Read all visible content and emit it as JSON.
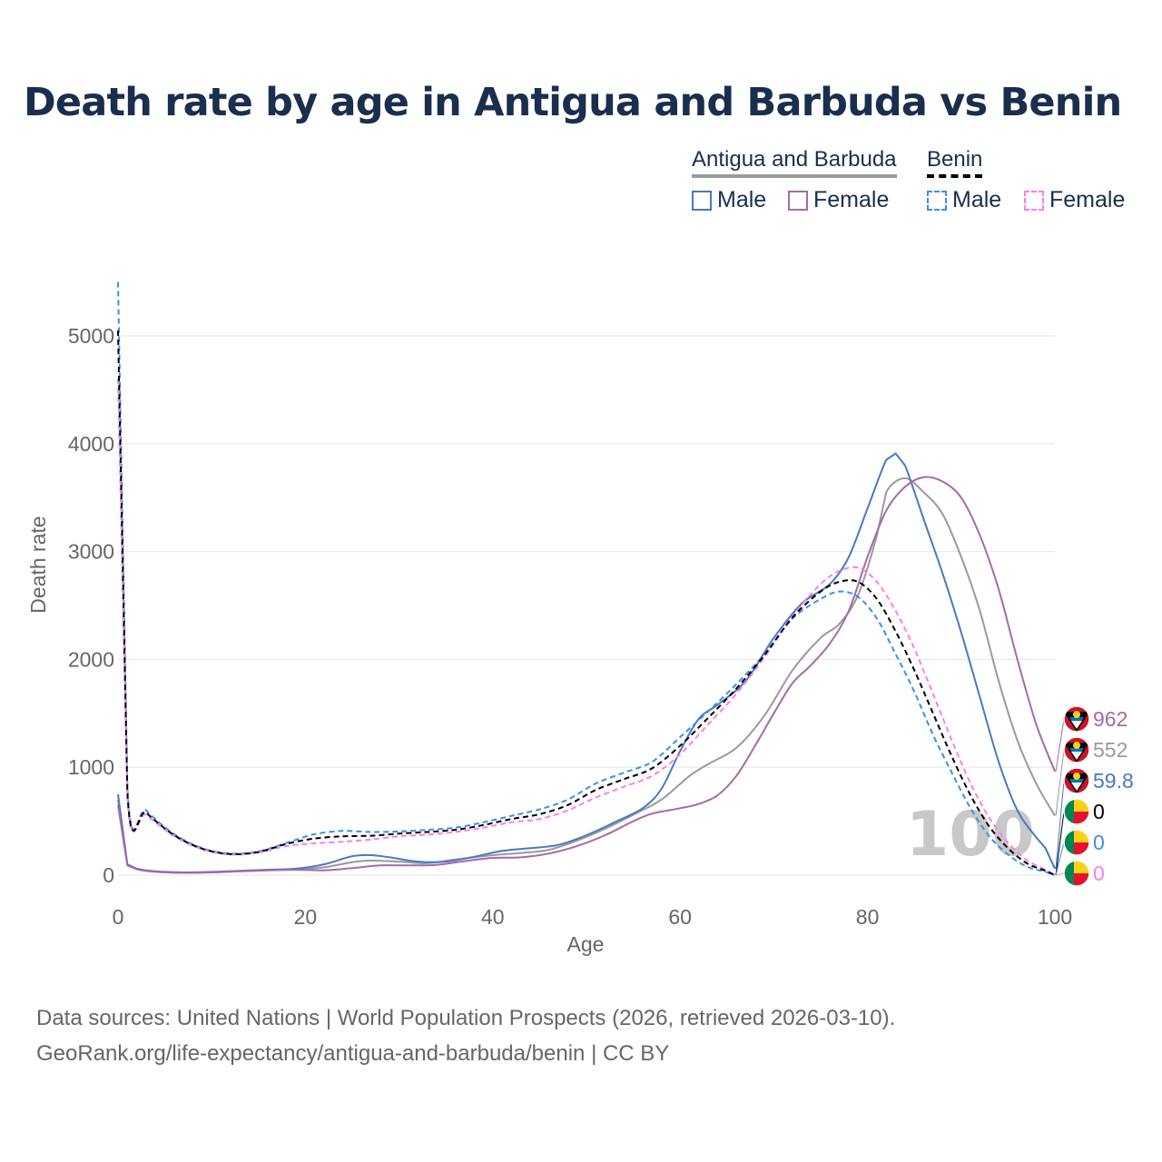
{
  "title": "Death rate by age in Antigua and Barbuda vs Benin",
  "legend": {
    "country_a": "Antigua and Barbuda",
    "country_b": "Benin",
    "male": "Male",
    "female": "Female"
  },
  "footer": {
    "line1": "Data sources: United Nations | World Population Prospects (2026, retrieved 2026-03-10).",
    "line2": "GeoRank.org/life-expectancy/antigua-and-barbuda/benin | CC BY"
  },
  "colors": {
    "male": "#4a78c2",
    "female": "#a56aaa",
    "total": "#9a9a9a",
    "benin_male": "#3d8ee8",
    "benin_female": "#ff7ce8",
    "benin_total": "#000000"
  },
  "chart_data": {
    "type": "line",
    "title": "Death rate by age in Antigua and Barbuda vs Benin",
    "xlabel": "Age",
    "ylabel": "Death rate",
    "xlim": [
      0,
      100
    ],
    "ylim": [
      0,
      5000
    ],
    "xticks": [
      0,
      20,
      40,
      60,
      80,
      100
    ],
    "yticks": [
      0,
      1000,
      2000,
      3000,
      4000,
      5000
    ],
    "year_watermark": "100",
    "series": [
      {
        "name": "Antigua and Barbuda Male",
        "country": "Antigua and Barbuda",
        "sex": "Male",
        "style": "solid",
        "color": "#4a78c2",
        "points": [
          [
            0,
            750
          ],
          [
            1,
            100
          ],
          [
            2,
            60
          ],
          [
            4,
            35
          ],
          [
            7,
            25
          ],
          [
            10,
            30
          ],
          [
            13,
            40
          ],
          [
            16,
            50
          ],
          [
            19,
            60
          ],
          [
            22,
            100
          ],
          [
            25,
            175
          ],
          [
            27,
            185
          ],
          [
            29,
            165
          ],
          [
            32,
            125
          ],
          [
            35,
            125
          ],
          [
            38,
            170
          ],
          [
            41,
            225
          ],
          [
            44,
            250
          ],
          [
            47,
            280
          ],
          [
            50,
            370
          ],
          [
            53,
            490
          ],
          [
            56,
            620
          ],
          [
            58,
            800
          ],
          [
            60,
            1150
          ],
          [
            62,
            1450
          ],
          [
            64,
            1580
          ],
          [
            67,
            1800
          ],
          [
            70,
            2200
          ],
          [
            73,
            2520
          ],
          [
            76,
            2700
          ],
          [
            78,
            2950
          ],
          [
            80,
            3400
          ],
          [
            82,
            3850
          ],
          [
            83,
            3910
          ],
          [
            84,
            3800
          ],
          [
            86,
            3300
          ],
          [
            88,
            2800
          ],
          [
            90,
            2250
          ],
          [
            92,
            1650
          ],
          [
            94,
            1050
          ],
          [
            96,
            600
          ],
          [
            98,
            350
          ],
          [
            99,
            250
          ],
          [
            100,
            60
          ]
        ],
        "end_label": "59.8"
      },
      {
        "name": "Antigua and Barbuda Female",
        "country": "Antigua and Barbuda",
        "sex": "Female",
        "style": "solid",
        "color": "#a56aaa",
        "points": [
          [
            0,
            650
          ],
          [
            1,
            90
          ],
          [
            2,
            55
          ],
          [
            4,
            30
          ],
          [
            7,
            22
          ],
          [
            10,
            25
          ],
          [
            13,
            35
          ],
          [
            16,
            45
          ],
          [
            19,
            50
          ],
          [
            22,
            45
          ],
          [
            25,
            65
          ],
          [
            28,
            90
          ],
          [
            31,
            90
          ],
          [
            34,
            95
          ],
          [
            37,
            130
          ],
          [
            40,
            160
          ],
          [
            43,
            165
          ],
          [
            46,
            200
          ],
          [
            49,
            270
          ],
          [
            52,
            370
          ],
          [
            55,
            500
          ],
          [
            57,
            570
          ],
          [
            60,
            620
          ],
          [
            62,
            660
          ],
          [
            64,
            740
          ],
          [
            66,
            920
          ],
          [
            68,
            1200
          ],
          [
            70,
            1500
          ],
          [
            72,
            1780
          ],
          [
            74,
            1950
          ],
          [
            76,
            2150
          ],
          [
            78,
            2450
          ],
          [
            80,
            2950
          ],
          [
            82,
            3380
          ],
          [
            84,
            3600
          ],
          [
            86,
            3690
          ],
          [
            88,
            3650
          ],
          [
            90,
            3500
          ],
          [
            92,
            3150
          ],
          [
            94,
            2650
          ],
          [
            96,
            2000
          ],
          [
            98,
            1400
          ],
          [
            100,
            962
          ]
        ],
        "end_label": "962"
      },
      {
        "name": "Antigua and Barbuda Total",
        "country": "Antigua and Barbuda",
        "sex": "Total",
        "style": "solid",
        "color": "#9a9a9a",
        "points": [
          [
            0,
            700
          ],
          [
            1,
            95
          ],
          [
            2,
            57
          ],
          [
            4,
            32
          ],
          [
            7,
            23
          ],
          [
            10,
            27
          ],
          [
            13,
            37
          ],
          [
            16,
            47
          ],
          [
            19,
            55
          ],
          [
            22,
            72
          ],
          [
            25,
            120
          ],
          [
            27,
            135
          ],
          [
            30,
            125
          ],
          [
            33,
            110
          ],
          [
            36,
            145
          ],
          [
            40,
            185
          ],
          [
            43,
            205
          ],
          [
            46,
            235
          ],
          [
            49,
            320
          ],
          [
            52,
            430
          ],
          [
            55,
            560
          ],
          [
            58,
            700
          ],
          [
            61,
            920
          ],
          [
            63,
            1030
          ],
          [
            66,
            1180
          ],
          [
            69,
            1480
          ],
          [
            72,
            1900
          ],
          [
            75,
            2200
          ],
          [
            77,
            2330
          ],
          [
            79,
            2600
          ],
          [
            81,
            3150
          ],
          [
            82,
            3550
          ],
          [
            84,
            3680
          ],
          [
            86,
            3550
          ],
          [
            88,
            3350
          ],
          [
            90,
            2950
          ],
          [
            92,
            2450
          ],
          [
            94,
            1800
          ],
          [
            96,
            1250
          ],
          [
            98,
            850
          ],
          [
            100,
            552
          ]
        ],
        "end_label": "552"
      },
      {
        "name": "Benin Male",
        "country": "Benin",
        "sex": "Male",
        "style": "dashed",
        "color": "#3d8ee8",
        "points": [
          [
            0,
            5500
          ],
          [
            1,
            820
          ],
          [
            3,
            600
          ],
          [
            6,
            380
          ],
          [
            9,
            250
          ],
          [
            12,
            200
          ],
          [
            15,
            220
          ],
          [
            18,
            300
          ],
          [
            21,
            380
          ],
          [
            24,
            410
          ],
          [
            27,
            400
          ],
          [
            30,
            405
          ],
          [
            33,
            420
          ],
          [
            36,
            440
          ],
          [
            39,
            490
          ],
          [
            42,
            550
          ],
          [
            45,
            610
          ],
          [
            48,
            700
          ],
          [
            51,
            850
          ],
          [
            54,
            950
          ],
          [
            57,
            1050
          ],
          [
            60,
            1280
          ],
          [
            63,
            1520
          ],
          [
            66,
            1770
          ],
          [
            69,
            2050
          ],
          [
            72,
            2380
          ],
          [
            75,
            2560
          ],
          [
            77,
            2630
          ],
          [
            79,
            2580
          ],
          [
            81,
            2380
          ],
          [
            83,
            2050
          ],
          [
            85,
            1700
          ],
          [
            87,
            1300
          ],
          [
            89,
            950
          ],
          [
            91,
            620
          ],
          [
            93,
            360
          ],
          [
            95,
            190
          ],
          [
            97,
            80
          ],
          [
            99,
            30
          ],
          [
            100,
            0
          ]
        ],
        "end_label": "0"
      },
      {
        "name": "Benin Female",
        "country": "Benin",
        "sex": "Female",
        "style": "dashed",
        "color": "#ff7ce8",
        "points": [
          [
            0,
            4600
          ],
          [
            1,
            720
          ],
          [
            3,
            560
          ],
          [
            6,
            360
          ],
          [
            9,
            240
          ],
          [
            12,
            190
          ],
          [
            15,
            210
          ],
          [
            18,
            270
          ],
          [
            21,
            295
          ],
          [
            24,
            310
          ],
          [
            27,
            330
          ],
          [
            30,
            360
          ],
          [
            33,
            375
          ],
          [
            36,
            400
          ],
          [
            39,
            440
          ],
          [
            42,
            490
          ],
          [
            45,
            520
          ],
          [
            48,
            600
          ],
          [
            51,
            720
          ],
          [
            54,
            820
          ],
          [
            57,
            920
          ],
          [
            60,
            1120
          ],
          [
            63,
            1400
          ],
          [
            66,
            1680
          ],
          [
            69,
            2020
          ],
          [
            72,
            2400
          ],
          [
            75,
            2700
          ],
          [
            77,
            2820
          ],
          [
            79,
            2850
          ],
          [
            81,
            2720
          ],
          [
            83,
            2450
          ],
          [
            85,
            2100
          ],
          [
            87,
            1680
          ],
          [
            89,
            1250
          ],
          [
            91,
            850
          ],
          [
            93,
            530
          ],
          [
            95,
            300
          ],
          [
            97,
            140
          ],
          [
            99,
            50
          ],
          [
            100,
            0
          ]
        ],
        "end_label": "0"
      },
      {
        "name": "Benin Total",
        "country": "Benin",
        "sex": "Total",
        "style": "dashed",
        "color": "#000000",
        "points": [
          [
            0,
            5050
          ],
          [
            1,
            770
          ],
          [
            3,
            580
          ],
          [
            6,
            370
          ],
          [
            9,
            245
          ],
          [
            12,
            195
          ],
          [
            15,
            215
          ],
          [
            18,
            290
          ],
          [
            21,
            340
          ],
          [
            24,
            360
          ],
          [
            27,
            365
          ],
          [
            30,
            385
          ],
          [
            33,
            400
          ],
          [
            36,
            420
          ],
          [
            39,
            465
          ],
          [
            42,
            520
          ],
          [
            45,
            565
          ],
          [
            48,
            650
          ],
          [
            51,
            790
          ],
          [
            54,
            890
          ],
          [
            57,
            990
          ],
          [
            60,
            1200
          ],
          [
            63,
            1460
          ],
          [
            66,
            1730
          ],
          [
            69,
            2040
          ],
          [
            72,
            2390
          ],
          [
            75,
            2630
          ],
          [
            77,
            2720
          ],
          [
            79,
            2720
          ],
          [
            81,
            2560
          ],
          [
            83,
            2260
          ],
          [
            85,
            1900
          ],
          [
            87,
            1500
          ],
          [
            89,
            1100
          ],
          [
            91,
            740
          ],
          [
            93,
            450
          ],
          [
            95,
            250
          ],
          [
            97,
            110
          ],
          [
            99,
            40
          ],
          [
            100,
            0
          ]
        ],
        "end_label": "0"
      }
    ]
  }
}
